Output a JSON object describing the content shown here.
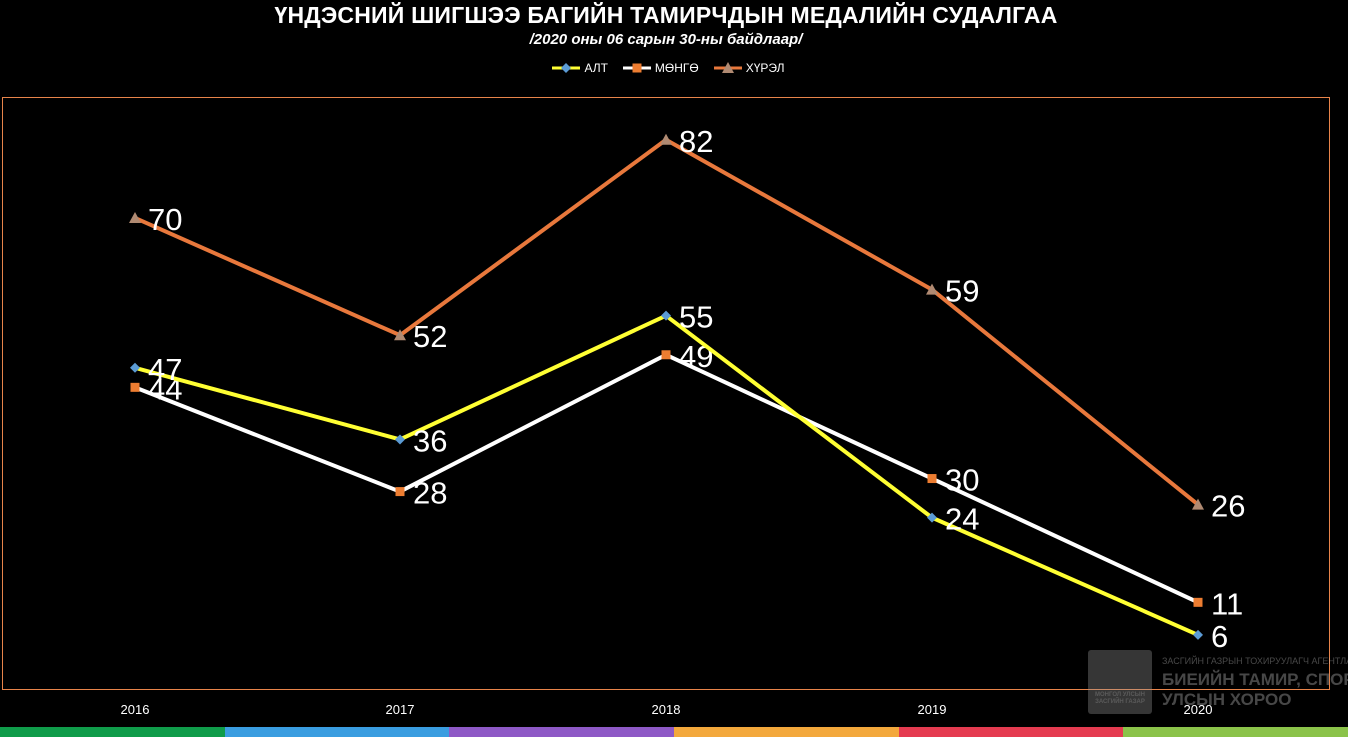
{
  "chart_data": {
    "type": "line",
    "title": "ҮНДЭСНИЙ ШИГШЭЭ БАГИЙН ТАМИРЧДЫН МЕДАЛИЙН СУДАЛГАА",
    "subtitle": "/2020 оны 06 сарын 30-ны байдлаар/",
    "categories": [
      "2016",
      "2017",
      "2018",
      "2019",
      "2020"
    ],
    "series": [
      {
        "name": "АЛТ",
        "values": [
          47,
          36,
          55,
          24,
          6
        ],
        "color": "#ffff33",
        "marker": "diamond",
        "marker_color": "#5b9bd5"
      },
      {
        "name": "МӨНГӨ",
        "values": [
          44,
          28,
          49,
          30,
          11
        ],
        "color": "#ffffff",
        "marker": "square",
        "marker_color": "#ed7d31"
      },
      {
        "name": "ХҮРЭЛ",
        "values": [
          70,
          52,
          82,
          59,
          26
        ],
        "color": "#e8783c",
        "marker": "triangle",
        "marker_color": "#b08a72"
      }
    ],
    "data_labels": true,
    "legend_position": "top",
    "grid": false
  },
  "watermark": {
    "emblem": "МОНГОЛ УЛСЫН ЗАСГИЙН ГАЗАР",
    "line1": "ЗАСГИЙН ГАЗРЫН ТОХИРУУЛАГЧ АГЕНТЛАГ",
    "line2": "БИЕИЙН ТАМИР, СПОРТЫН",
    "line3": "УЛСЫН ХОРОО"
  },
  "stripe_colors": [
    "#0f9c4a",
    "#3a9de0",
    "#8e59c6",
    "#f3a83c",
    "#e53b50",
    "#8bc34a"
  ]
}
